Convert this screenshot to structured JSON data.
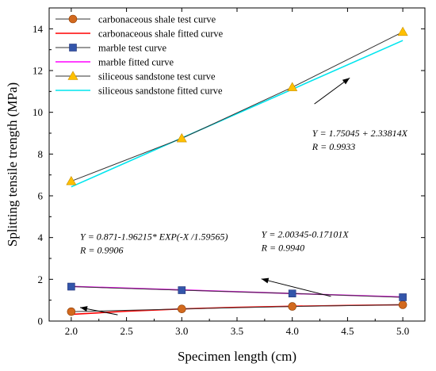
{
  "chart_data": {
    "type": "line",
    "title": "",
    "xlabel": "Specimen length (cm)",
    "ylabel": "Splitting tensile trength (MPa)",
    "xlim": [
      1.8,
      5.2
    ],
    "ylim": [
      0,
      15
    ],
    "xticks": [
      "2.0",
      "2.5",
      "3.0",
      "3.5",
      "4.0",
      "4.5",
      "5.0"
    ],
    "yticks": [
      "0",
      "2",
      "4",
      "6",
      "8",
      "10",
      "12",
      "14"
    ],
    "grid": false,
    "legend_position": "top-left",
    "series": [
      {
        "name": "carbonaceous shale test curve",
        "kind": "test",
        "marker": "circle",
        "color": "#d2691e",
        "line_color": "#333333",
        "x": [
          2.0,
          3.0,
          4.0,
          5.0
        ],
        "y": [
          0.45,
          0.58,
          0.7,
          0.78
        ]
      },
      {
        "name": "carbonaceous shale fitted curve",
        "kind": "fit",
        "color": "#ff0000",
        "x": [
          2.0,
          2.5,
          3.0,
          3.5,
          4.0,
          4.5,
          5.0
        ],
        "y": [
          0.32,
          0.47,
          0.58,
          0.66,
          0.71,
          0.75,
          0.78
        ]
      },
      {
        "name": "marble test curve",
        "kind": "test",
        "marker": "square",
        "color": "#3355aa",
        "line_color": "#333333",
        "x": [
          2.0,
          3.0,
          4.0,
          5.0
        ],
        "y": [
          1.65,
          1.48,
          1.32,
          1.14
        ]
      },
      {
        "name": "marble  fitted curve",
        "kind": "fit",
        "color": "#ff00ff",
        "x": [
          2.0,
          5.0
        ],
        "y": [
          1.66,
          1.15
        ]
      },
      {
        "name": "siliceous sandstone test curve",
        "kind": "test",
        "marker": "triangle",
        "color": "#ffc000",
        "line_color": "#333333",
        "x": [
          2.0,
          3.0,
          4.0,
          5.0
        ],
        "y": [
          6.7,
          8.75,
          11.2,
          13.85
        ]
      },
      {
        "name": "siliceous sandstone fitted curve",
        "kind": "fit",
        "color": "#00e5ee",
        "x": [
          2.0,
          5.0
        ],
        "y": [
          6.43,
          13.44
        ]
      }
    ],
    "annotations": [
      {
        "lines": [
          "Y = 1.75045 + 2.33814X",
          "R = 0.9933"
        ],
        "arrow_from": [
          4.2,
          10.4
        ],
        "arrow_to": [
          4.52,
          11.65
        ],
        "text_at": [
          4.18,
          8.85
        ]
      },
      {
        "lines": [
          "Y = 0.871-1.96215* EXP(-X /1.59565)",
          "R = 0.9906"
        ],
        "arrow_from": [
          2.42,
          0.3
        ],
        "arrow_to": [
          2.08,
          0.65
        ],
        "text_at": [
          2.08,
          3.9
        ]
      },
      {
        "lines": [
          "Y = 2.00345-0.17101X",
          "R = 0.9940"
        ],
        "arrow_from": [
          4.35,
          1.18
        ],
        "arrow_to": [
          3.72,
          2.02
        ],
        "text_at": [
          3.72,
          4.0
        ]
      }
    ]
  }
}
